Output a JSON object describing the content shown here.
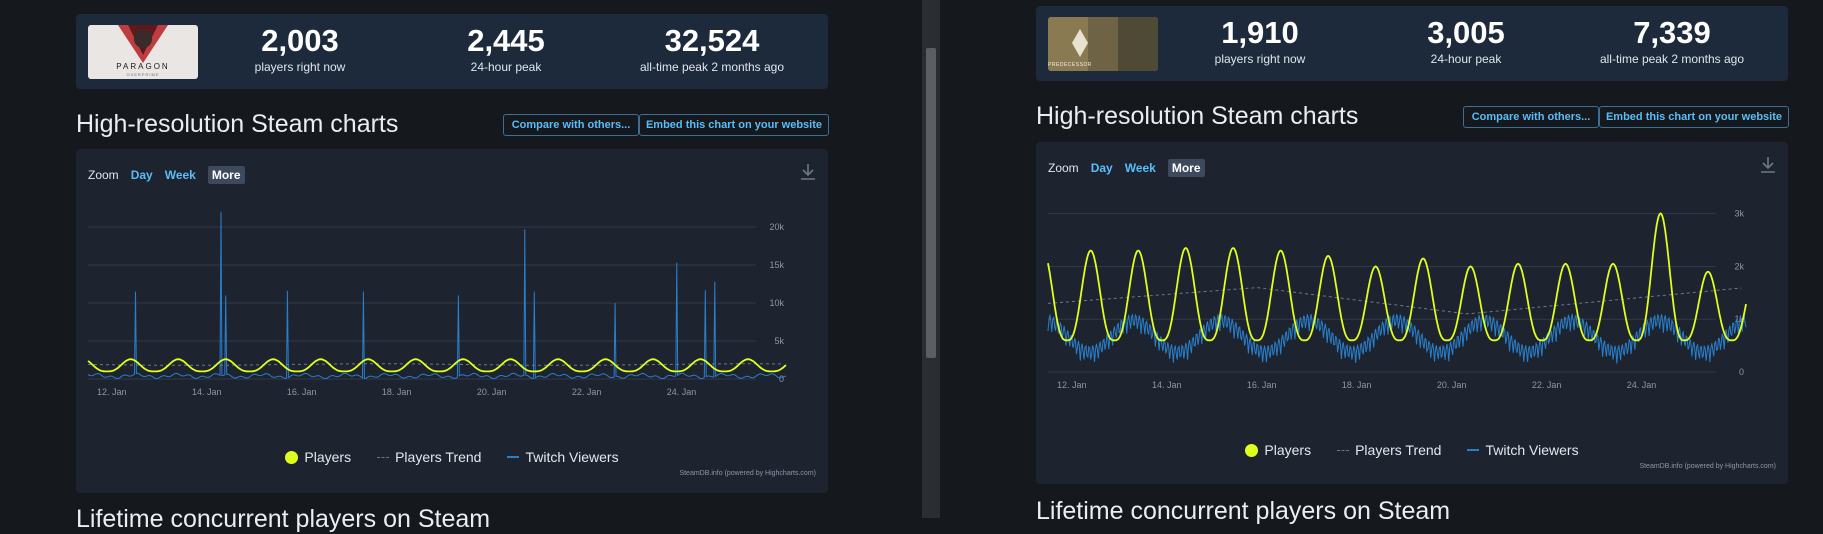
{
  "left": {
    "stats": [
      {
        "value": "2,003",
        "label": "players right now"
      },
      {
        "value": "2,445",
        "label": "24-hour peak"
      },
      {
        "value": "32,524",
        "label": "all-time peak 2 months ago"
      }
    ],
    "logo_text": "PARAGON",
    "logo_subtext": "OVERPRIME",
    "section_title": "High-resolution Steam charts",
    "compare_button": "Compare with others...",
    "embed_button": "Embed this chart on your website",
    "zoom_label": "Zoom",
    "zoom_options": [
      "Day",
      "Week",
      "More"
    ],
    "legend": [
      "Players",
      "Players Trend",
      "Twitch Viewers"
    ],
    "credit": "SteamDB.info (powered by Highcharts.com)",
    "bottom_title": "Lifetime concurrent players on Steam"
  },
  "right": {
    "stats": [
      {
        "value": "1,910",
        "label": "players right now"
      },
      {
        "value": "3,005",
        "label": "24-hour peak"
      },
      {
        "value": "7,339",
        "label": "all-time peak 2 months ago"
      }
    ],
    "logo_text": "PREDECESSOR",
    "section_title": "High-resolution Steam charts",
    "compare_button": "Compare with others...",
    "embed_button": "Embed this chart on your website",
    "zoom_label": "Zoom",
    "zoom_options": [
      "Day",
      "Week",
      "More"
    ],
    "legend": [
      "Players",
      "Players Trend",
      "Twitch Viewers"
    ],
    "credit": "SteamDB.info (powered by Highcharts.com)",
    "bottom_title": "Lifetime concurrent players on Steam"
  },
  "colors": {
    "players": "#dfff1c",
    "trend": "#6c7a89",
    "twitch": "#2a7fc9",
    "accent": "#59bdf7"
  },
  "chart_data": [
    {
      "type": "line",
      "x_start_day": 11.6,
      "x_end_day": 26.3,
      "x_ticks": [
        "12. Jan",
        "14. Jan",
        "16. Jan",
        "18. Jan",
        "20. Jan",
        "22. Jan",
        "24. Jan"
      ],
      "x_tick_days": [
        12,
        14,
        16,
        18,
        20,
        22,
        24
      ],
      "y_ticks": [
        "0",
        "5k",
        "10k",
        "15k",
        "20k"
      ],
      "y_tick_values": [
        0,
        5000,
        10000,
        15000,
        20000
      ],
      "ylim": [
        0,
        25000
      ],
      "series": [
        {
          "name": "Players",
          "daily_low": 1000,
          "daily_high": 2600,
          "current": 2003
        },
        {
          "name": "Players Trend",
          "value": 1900
        },
        {
          "name": "Twitch Viewers",
          "baseline": 400,
          "spikes": [
            {
              "day": 12.6,
              "value": 11500
            },
            {
              "day": 14.4,
              "value": 22000
            },
            {
              "day": 14.5,
              "value": 11000
            },
            {
              "day": 15.8,
              "value": 11600
            },
            {
              "day": 17.4,
              "value": 11500
            },
            {
              "day": 19.4,
              "value": 11000
            },
            {
              "day": 20.8,
              "value": 19700
            },
            {
              "day": 21.0,
              "value": 11500
            },
            {
              "day": 22.7,
              "value": 10000
            },
            {
              "day": 24.0,
              "value": 15300
            },
            {
              "day": 24.6,
              "value": 11700
            },
            {
              "day": 24.8,
              "value": 12800
            }
          ]
        }
      ]
    },
    {
      "type": "line",
      "x_start_day": 11.6,
      "x_end_day": 26.3,
      "x_ticks": [
        "12. Jan",
        "14. Jan",
        "16. Jan",
        "18. Jan",
        "20. Jan",
        "22. Jan",
        "24. Jan"
      ],
      "x_tick_days": [
        12,
        14,
        16,
        18,
        20,
        22,
        24
      ],
      "y_ticks": [
        "0",
        "1k",
        "2k",
        "3k"
      ],
      "y_tick_values": [
        0,
        1000,
        2000,
        3000
      ],
      "ylim": [
        0,
        3600
      ],
      "series": [
        {
          "name": "Players",
          "daily_low": 600,
          "daily_peaks": [
            2300,
            2300,
            2300,
            2350,
            2350,
            2300,
            2200,
            2000,
            2150,
            2000,
            2050,
            2050,
            2050,
            3005,
            1900
          ],
          "current": 1910
        },
        {
          "name": "Players Trend",
          "values_start": 1300,
          "values_mid": 1600,
          "values_low": 1100,
          "values_end": 1600
        },
        {
          "name": "Twitch Viewers",
          "low": 100,
          "high": 1100
        }
      ]
    }
  ]
}
